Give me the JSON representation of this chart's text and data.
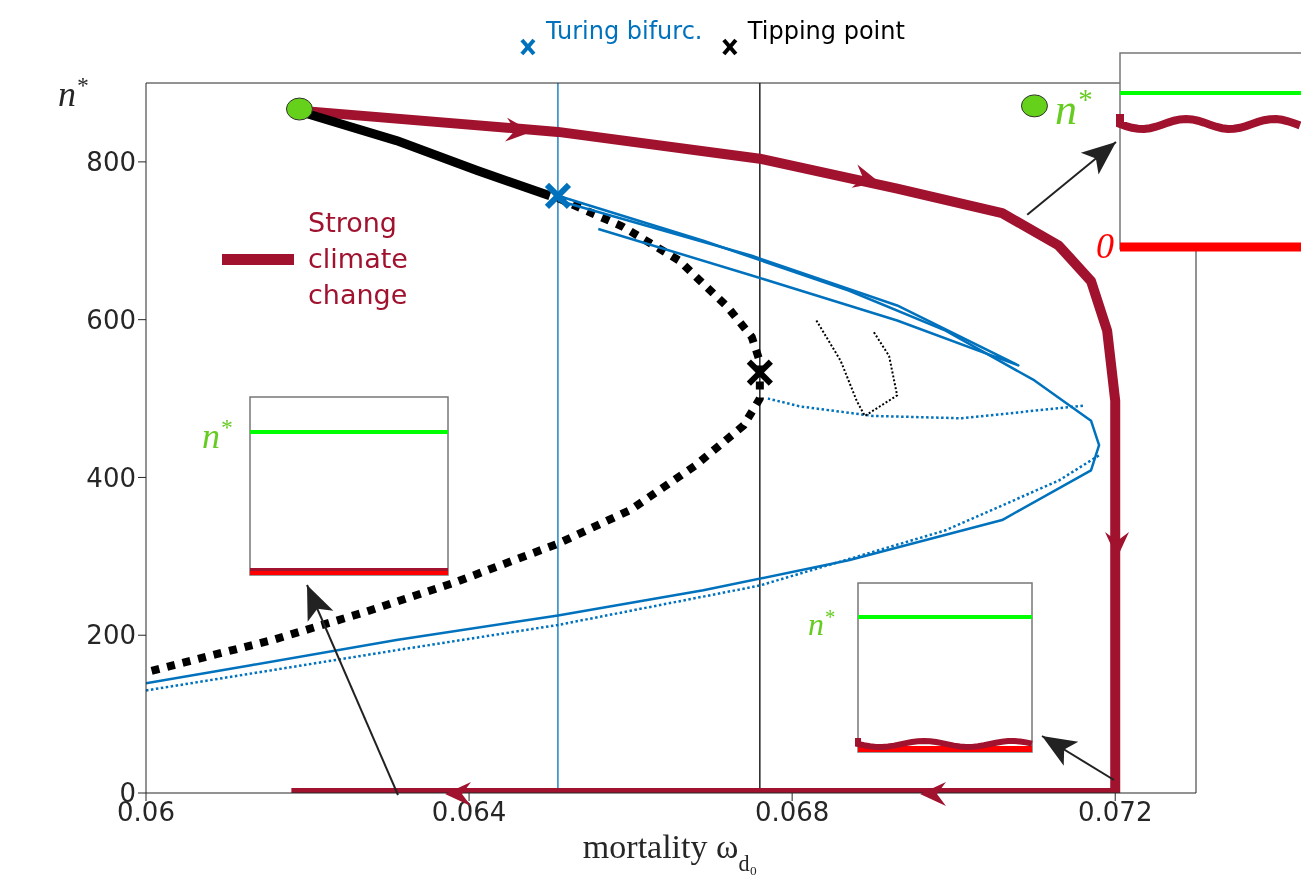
{
  "chart_data": {
    "type": "line",
    "xlabel": "mortality ω$_{d₀}$",
    "ylabel": "n$^{*}$",
    "xlim": [
      0.06,
      0.073
    ],
    "xticks": [
      0.06,
      0.064,
      0.068,
      0.072
    ],
    "ylim": [
      0,
      900
    ],
    "yticks": [
      0,
      200,
      400,
      600,
      800
    ],
    "grid": false,
    "legend": "left",
    "ref_lines": [
      {
        "axis": "x",
        "value": 0.0651,
        "label": "Turing bifurc.",
        "color": "#0072bd"
      },
      {
        "axis": "x",
        "value": 0.0676,
        "label": "Tipping point",
        "color": "#000000"
      }
    ],
    "annotations": [
      {
        "text": "n$^{*}$",
        "x": 0.0709,
        "y": 732
      },
      "0",
      "n$^{*}$",
      "n$^{*}$"
    ],
    "series": [
      {
        "name": "Strong climate change",
        "color": "#a0122e",
        "line_style": "solid",
        "x": [
          0.0619,
          0.0651,
          0.0676,
          0.0693,
          0.0706,
          0.0713,
          0.0717,
          0.0719,
          0.072,
          0.072,
          0.0618
        ],
        "values": [
          865,
          838,
          804,
          766,
          735,
          694,
          649,
          586,
          497,
          0,
          0
        ]
      },
      {
        "color": "#000000",
        "line_style": "solid",
        "x": [
          0.0618,
          0.0631,
          0.0641,
          0.065
        ],
        "values": [
          867,
          827,
          789,
          757
        ]
      },
      {
        "color": "#000000",
        "line_style": "dotted",
        "x": [
          0.0651,
          0.0659,
          0.0666,
          0.0672,
          0.0675,
          0.0676,
          0.0676,
          0.0674,
          0.0668,
          0.066,
          0.0651,
          0.0638,
          0.0627,
          0.0616,
          0.06
        ],
        "values": [
          754,
          718,
          675,
          616,
          578,
          547,
          500,
          466,
          415,
          359,
          316,
          266,
          229,
          195,
          153
        ]
      },
      {
        "color": "#0072bd",
        "line_style": "solid",
        "x": [
          0.0651,
          0.0669,
          0.0687,
          0.0699,
          0.071,
          0.0717,
          0.0718,
          0.0717,
          0.0706,
          0.0687,
          0.0669,
          0.0651,
          0.0631,
          0.0613,
          0.06
        ],
        "values": [
          757,
          700,
          637,
          586,
          523,
          472,
          441,
          409,
          346,
          295,
          257,
          225,
          194,
          162,
          139
        ]
      },
      {
        "color": "#0072bd",
        "line_style": "solid",
        "x": [
          0.0651,
          0.0675,
          0.0693,
          0.0708,
          0.0693,
          0.0675,
          0.0656
        ],
        "values": [
          751,
          681,
          618,
          542,
          599,
          656,
          715
        ]
      },
      {
        "color": "#0072bd",
        "line_style": "dotted",
        "x": [
          0.06,
          0.0631,
          0.0651,
          0.0676,
          0.0699,
          0.0713,
          0.0718
        ],
        "values": [
          130,
          181,
          213,
          263,
          333,
          396,
          428
        ]
      },
      {
        "color": "#0072bd",
        "line_style": "dotted",
        "x": [
          0.0716,
          0.0701,
          0.069,
          0.0681,
          0.0677
        ],
        "values": [
          491,
          475,
          478,
          490,
          500
        ]
      },
      {
        "color": "#000000",
        "line_style": "dotted",
        "x": [
          0.0683,
          0.0686,
          0.0688,
          0.0689,
          0.0693,
          0.0692,
          0.069
        ],
        "values": [
          599,
          548,
          497,
          478,
          504,
          554,
          586
        ]
      },
      {
        "type": "scatter",
        "color": "#66d11a",
        "marker": "circle",
        "x": [
          0.0619,
          0.071
        ],
        "values": [
          867,
          871
        ]
      },
      {
        "type": "scatter",
        "color": "#0072bd",
        "marker": "cross",
        "x": [
          0.0651
        ],
        "values": [
          757
        ]
      },
      {
        "type": "scatter",
        "color": "#000000",
        "marker": "cross",
        "x": [
          0.0676
        ],
        "values": [
          533
        ]
      }
    ]
  }
}
